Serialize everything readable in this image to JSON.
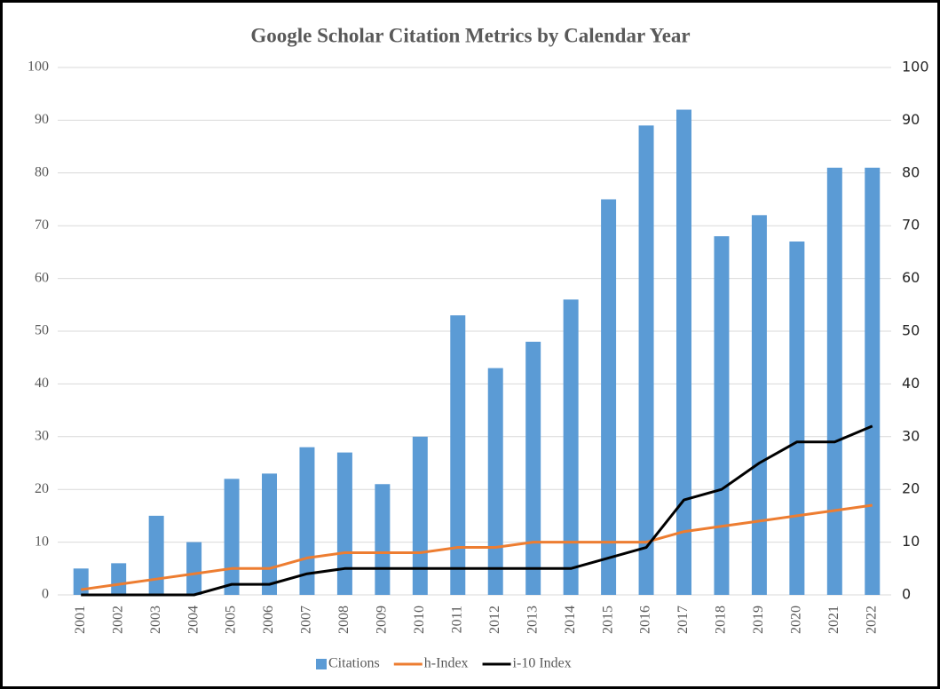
{
  "chart_data": {
    "type": "bar_line",
    "title": "Google Scholar Citation Metrics by Calendar Year",
    "categories": [
      "2001",
      "2002",
      "2003",
      "2004",
      "2005",
      "2006",
      "2007",
      "2008",
      "2009",
      "2010",
      "2011",
      "2012",
      "2013",
      "2014",
      "2015",
      "2016",
      "2017",
      "2018",
      "2019",
      "2020",
      "2021",
      "2022"
    ],
    "series": [
      {
        "name": "Citations",
        "type": "bar",
        "color": "#5b9bd5",
        "values": [
          5,
          6,
          15,
          10,
          22,
          23,
          28,
          27,
          21,
          30,
          53,
          43,
          48,
          56,
          75,
          89,
          92,
          68,
          72,
          67,
          81,
          81
        ]
      },
      {
        "name": "h-Index",
        "type": "line",
        "axis": "y2",
        "color": "#ed7d31",
        "values": [
          1,
          2,
          3,
          4,
          5,
          5,
          7,
          8,
          8,
          8,
          9,
          9,
          10,
          10,
          10,
          10,
          12,
          13,
          14,
          15,
          16,
          17
        ]
      },
      {
        "name": "i-10 Index",
        "type": "line",
        "axis": "y2",
        "color": "#000000",
        "values": [
          0,
          0,
          0,
          0,
          2,
          2,
          4,
          5,
          5,
          5,
          5,
          5,
          5,
          5,
          7,
          9,
          18,
          20,
          25,
          29,
          29,
          32
        ]
      }
    ],
    "ylim": [
      0,
      100
    ],
    "yticks": [
      0,
      10,
      20,
      30,
      40,
      50,
      60,
      70,
      80,
      90,
      100
    ],
    "y2lim": [
      0,
      100
    ],
    "y2ticks": [
      0,
      10,
      20,
      30,
      40,
      50,
      60,
      70,
      80,
      90,
      100
    ],
    "grid": true,
    "legend": "bottom"
  }
}
